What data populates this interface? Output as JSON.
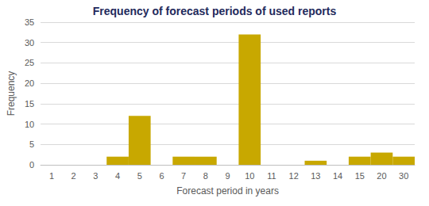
{
  "chart_data": {
    "type": "bar",
    "title": "Frequency of forecast periods of used reports",
    "x_label": "Forecast period in years",
    "y_label": "Frequency",
    "categories": [
      "1",
      "2",
      "3",
      "4",
      "5",
      "6",
      "7",
      "8",
      "9",
      "10",
      "11",
      "12",
      "13",
      "14",
      "15",
      "20",
      "30"
    ],
    "values": [
      0,
      0,
      0,
      2,
      12,
      0,
      2,
      2,
      0,
      32,
      0,
      0,
      1,
      0,
      2,
      3,
      2
    ],
    "color": "#c8a800",
    "ylim": [
      0,
      35
    ],
    "yticks": [
      0,
      5,
      10,
      15,
      20,
      25,
      30,
      35
    ],
    "grid": true
  }
}
